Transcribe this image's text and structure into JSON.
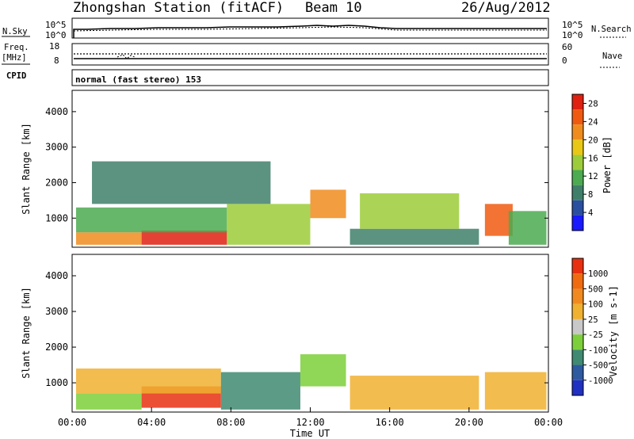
{
  "header": {
    "station": "Zhongshan Station (fitACF)",
    "beam": "Beam 10",
    "date": "26/Aug/2012"
  },
  "top_panels": {
    "nsky_label": "N.Sky",
    "nsky_ticks": [
      "10^5",
      "10^0"
    ],
    "nsearch_label": "N.Search",
    "nsearch_ticks": [
      "10^5",
      "10^0"
    ],
    "freq_label_1": "Freq.",
    "freq_label_2": "[MHz]",
    "freq_ticks": [
      "18",
      "8"
    ],
    "nave_label": "Nave",
    "nave_ticks": [
      "60",
      "0"
    ],
    "cpid_label": "CPID",
    "cpid_value": "normal (fast stereo) 153"
  },
  "chart_data": [
    {
      "type": "heatmap",
      "name": "power",
      "xlabel": "",
      "ylabel": "Slant Range [km]",
      "xlim": [
        0,
        24
      ],
      "ylim": [
        180,
        4600
      ],
      "y_ticks": [
        "1000",
        "2000",
        "3000",
        "4000"
      ],
      "colorbar_label": "Power [dB]",
      "colorbar_ticks": [
        "4",
        "8",
        "12",
        "16",
        "20",
        "24",
        "28"
      ],
      "colorbar_range": [
        0,
        30
      ],
      "colors": [
        "#1a1aff",
        "#2a4fa0",
        "#3f7f6a",
        "#4caa50",
        "#9ccc3a",
        "#e8c814",
        "#f08c1e",
        "#f05a10",
        "#e02010"
      ],
      "regions": [
        {
          "t0": 0.2,
          "t1": 3.5,
          "r0": 250,
          "r1": 600,
          "level": 22
        },
        {
          "t0": 3.5,
          "t1": 7.8,
          "r0": 250,
          "r1": 650,
          "level": 27
        },
        {
          "t0": 0.2,
          "t1": 7.8,
          "r0": 600,
          "r1": 1300,
          "level": 11
        },
        {
          "t0": 7.8,
          "t1": 12.0,
          "r0": 250,
          "r1": 1400,
          "level": 16
        },
        {
          "t0": 12.0,
          "t1": 13.8,
          "r0": 1000,
          "r1": 1800,
          "level": 22
        },
        {
          "t0": 14.0,
          "t1": 20.5,
          "r0": 250,
          "r1": 700,
          "level": 9
        },
        {
          "t0": 14.5,
          "t1": 19.5,
          "r0": 700,
          "r1": 1700,
          "level": 14
        },
        {
          "t0": 20.8,
          "t1": 22.2,
          "r0": 500,
          "r1": 1400,
          "level": 26
        },
        {
          "t0": 22.0,
          "t1": 23.9,
          "r0": 250,
          "r1": 1200,
          "level": 10
        },
        {
          "t0": 1.0,
          "t1": 10.0,
          "r0": 1400,
          "r1": 2600,
          "level": 8
        }
      ]
    },
    {
      "type": "heatmap",
      "name": "velocity",
      "xlabel": "Time UT",
      "ylabel": "Slant Range [km]",
      "xlim": [
        0,
        24
      ],
      "ylim": [
        180,
        4600
      ],
      "x_ticks": [
        "00:00",
        "04:00",
        "08:00",
        "12:00",
        "16:00",
        "20:00",
        "00:00"
      ],
      "y_ticks": [
        "1000",
        "2000",
        "3000",
        "4000"
      ],
      "colorbar_label": "Velocity [m s-1]",
      "colorbar_ticks": [
        "1000",
        "500",
        "100",
        "25",
        "-25",
        "-100",
        "-500",
        "-1000"
      ],
      "colorbar_range": [
        -1000,
        1000
      ],
      "colors": [
        "#2030c0",
        "#2e5aa0",
        "#3f8a70",
        "#7ccf3a",
        "#c8c8c8",
        "#f0b030",
        "#f08a20",
        "#f06a10",
        "#e83010"
      ],
      "regions": [
        {
          "t0": 0.2,
          "t1": 3.5,
          "r0": 250,
          "r1": 700,
          "level": -250
        },
        {
          "t0": 3.5,
          "t1": 7.5,
          "r0": 300,
          "r1": 900,
          "level": 800
        },
        {
          "t0": 0.2,
          "t1": 7.5,
          "r0": 700,
          "r1": 1400,
          "level": 200
        },
        {
          "t0": 7.5,
          "t1": 11.5,
          "r0": 250,
          "r1": 1300,
          "level": -350
        },
        {
          "t0": 11.5,
          "t1": 13.8,
          "r0": 900,
          "r1": 1800,
          "level": -300
        },
        {
          "t0": 14.0,
          "t1": 20.5,
          "r0": 250,
          "r1": 1200,
          "level": 150
        },
        {
          "t0": 20.8,
          "t1": 23.9,
          "r0": 250,
          "r1": 1300,
          "level": 120
        }
      ]
    }
  ]
}
